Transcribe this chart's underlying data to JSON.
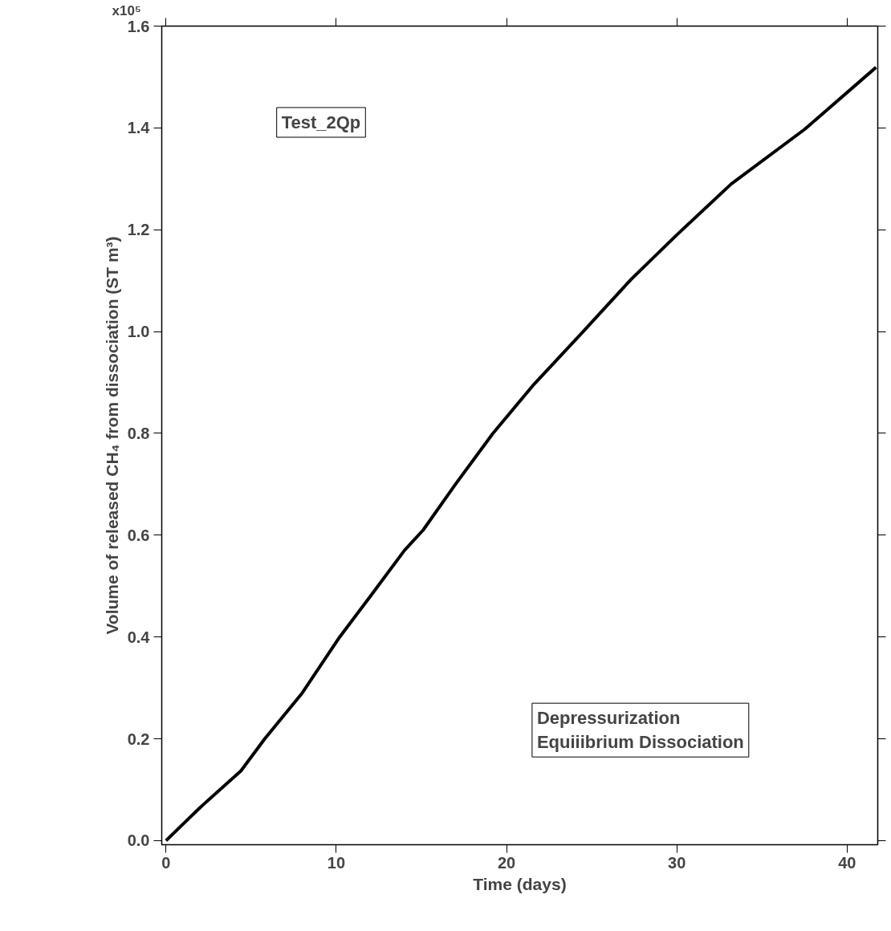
{
  "chart_data": {
    "type": "line",
    "xlabel": "Time (days)",
    "ylabel": "Volume of released CH₄ from dissociation (ST m³)",
    "annotations": [
      "Test_2Qp",
      "Depressurization\nEquiiibrium Dissociation",
      "x10⁵"
    ],
    "x": [
      0,
      2,
      4.4,
      5.8,
      8,
      10.2,
      12,
      14,
      15.1,
      17,
      19.2,
      21.6,
      24.5,
      27.3,
      30,
      33.2,
      37.5,
      41.7
    ],
    "series": [
      {
        "color": "#000000",
        "values": [
          0,
          0.065,
          0.137,
          0.2,
          0.29,
          0.4,
          0.48,
          0.57,
          0.61,
          0.7,
          0.8,
          0.896,
          1.0,
          1.102,
          1.19,
          1.29,
          1.397,
          1.519
        ]
      }
    ],
    "xlim": [
      -0.25,
      41.8
    ],
    "ylim": [
      -0.008,
      1.6
    ],
    "xticks": [
      0,
      10,
      20,
      30,
      40
    ],
    "yticks": [
      {
        "value": 0,
        "label": "0.0"
      },
      0.2,
      0.4,
      0.6,
      0.8,
      {
        "value": 1,
        "label": "1.0"
      },
      1.2,
      1.4,
      1.6
    ],
    "grid": false,
    "marker": "none",
    "line_style": "solid"
  }
}
